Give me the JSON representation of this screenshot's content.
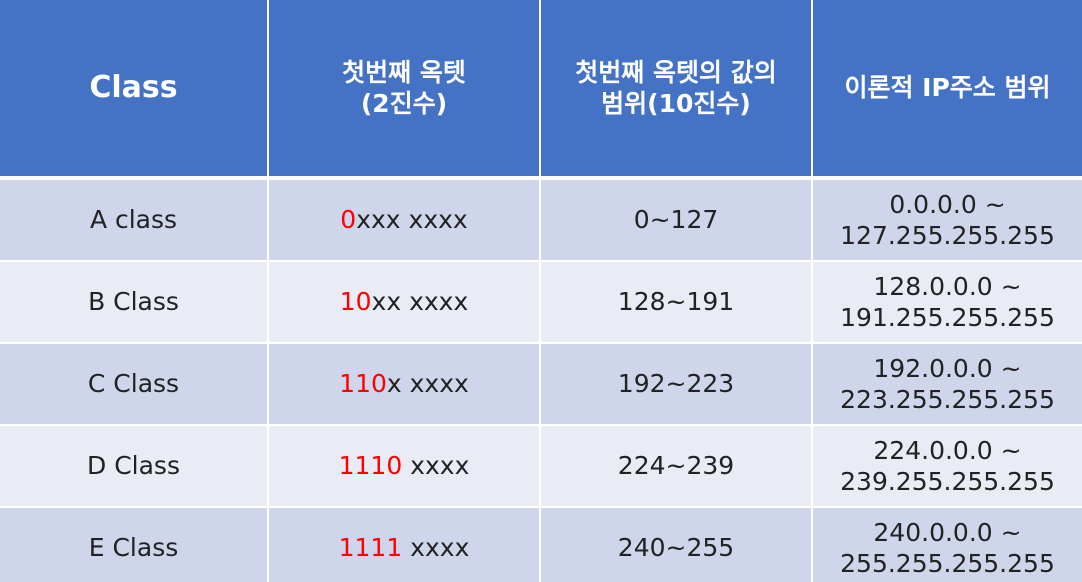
{
  "header": {
    "class": "Class",
    "first_octet_binary_line1": "첫번째 옥텟",
    "first_octet_binary_line2": "(2진수)",
    "first_octet_range_line1": "첫번째 옥텟의 값의",
    "first_octet_range_line2": "범위(10진수)",
    "ip_range": "이론적 IP주소 범위"
  },
  "rows": [
    {
      "class": "A class",
      "bits_lead": "0",
      "bits_rest": "xxx xxxx",
      "value_range": "0~127",
      "ip_range_line1": "0.0.0.0 ~",
      "ip_range_line2": "127.255.255.255"
    },
    {
      "class": "B Class",
      "bits_lead": "10",
      "bits_rest": "xx xxxx",
      "value_range": "128~191",
      "ip_range_line1": "128.0.0.0 ~",
      "ip_range_line2": "191.255.255.255"
    },
    {
      "class": "C Class",
      "bits_lead": "110",
      "bits_rest": "x xxxx",
      "value_range": "192~223",
      "ip_range_line1": "192.0.0.0 ~",
      "ip_range_line2": "223.255.255.255"
    },
    {
      "class": "D Class",
      "bits_lead": "1110",
      "bits_rest": " xxxx",
      "value_range": "224~239",
      "ip_range_line1": "224.0.0.0 ~",
      "ip_range_line2": "239.255.255.255"
    },
    {
      "class": "E Class",
      "bits_lead": "1111",
      "bits_rest": " xxxx",
      "value_range": "240~255",
      "ip_range_line1": "240.0.0.0 ~",
      "ip_range_line2": "255.255.255.255"
    }
  ],
  "colors": {
    "header_bg": "#4472c4",
    "row_dark": "#cfd5ea",
    "row_light": "#e9ebf5",
    "highlight_bits": "#ff0000"
  }
}
